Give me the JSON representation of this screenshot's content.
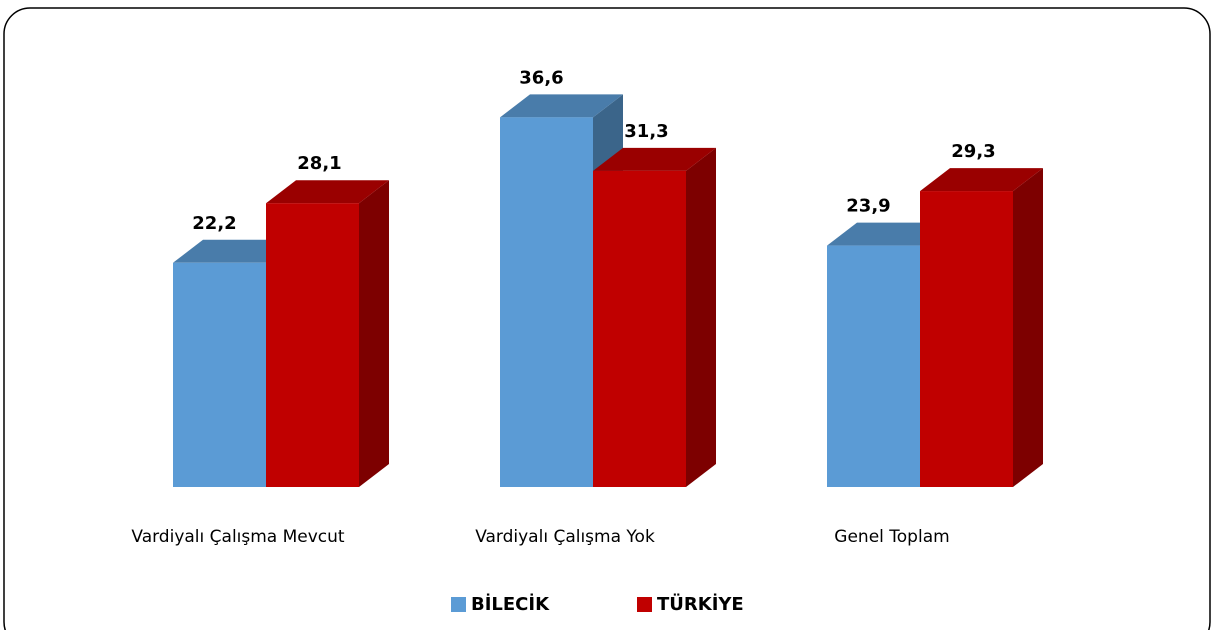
{
  "chart_data": {
    "type": "bar3d",
    "categories": [
      "Vardiyalı Çalışma Mevcut",
      "Vardiyalı Çalışma Yok",
      "Genel Toplam"
    ],
    "series": [
      {
        "name": "BİLECİK",
        "color": "#5b9bd5",
        "values": [
          22.2,
          36.6,
          23.9
        ],
        "value_labels": [
          "22,2",
          "36,6",
          "23,9"
        ]
      },
      {
        "name": "TÜRKİYE",
        "color": "#c00000",
        "values": [
          28.1,
          31.3,
          29.3
        ],
        "value_labels": [
          "28,1",
          "31,3",
          "29,3"
        ]
      }
    ],
    "legend": "bottom"
  }
}
